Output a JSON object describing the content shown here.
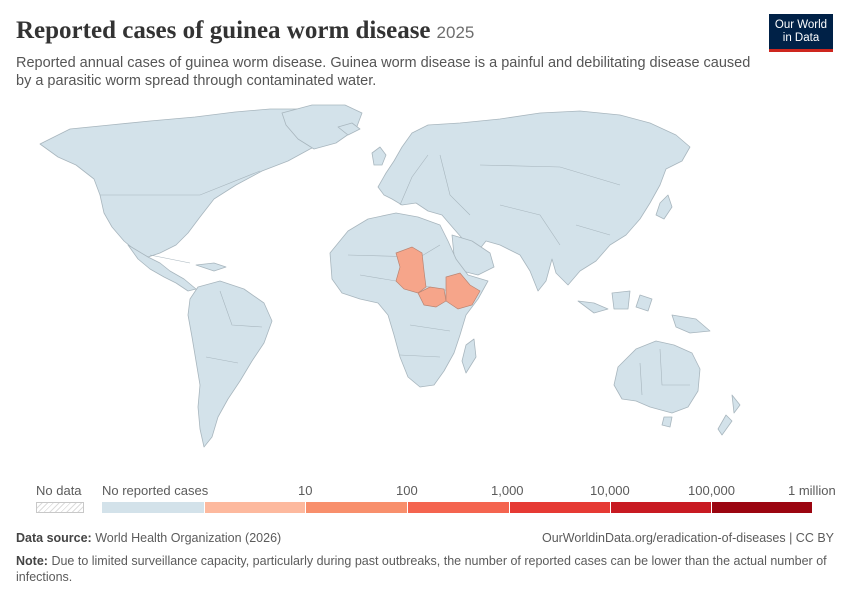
{
  "header": {
    "title": "Reported cases of guinea worm disease",
    "year": "2025",
    "subtitle": "Reported annual cases of guinea worm disease. Guinea worm disease is a painful and debilitating disease caused by a parasitic worm spread through contaminated water."
  },
  "logo": {
    "line1": "Our World",
    "line2": "in Data"
  },
  "map": {
    "colors": {
      "no_cases": "#d3e2ea",
      "border": "#a8b6be",
      "highlight": "#f6a58a"
    },
    "highlighted_countries": [
      "Chad",
      "South Sudan",
      "Ethiopia"
    ]
  },
  "legend": {
    "no_data_label": "No data",
    "no_cases_label": "No reported cases",
    "tick_labels": [
      "10",
      "100",
      "1,000",
      "10,000",
      "100,000",
      "1 million"
    ],
    "bin_colors": [
      "#d3e2ea",
      "#fdb99e",
      "#f88f6c",
      "#f4644f",
      "#e63a34",
      "#c81a22",
      "#9b0510"
    ]
  },
  "footer": {
    "source_label": "Data source:",
    "source_value": "World Health Organization (2026)",
    "url": "OurWorldinData.org/eradication-of-diseases | CC BY",
    "note_label": "Note:",
    "note_value": "Due to limited surveillance capacity, particularly during past outbreaks, the number of reported cases can be lower than the actual number of infections."
  }
}
